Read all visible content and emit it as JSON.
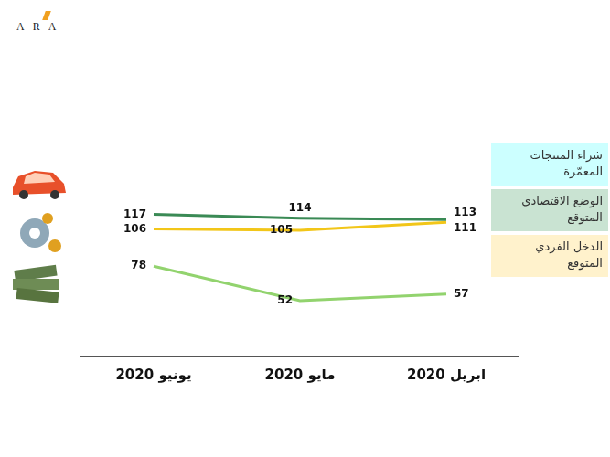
{
  "logo": "ARA",
  "chart_data": {
    "type": "line",
    "categories": [
      "يونيو 2020",
      "مايو 2020",
      "ابريل 2020"
    ],
    "series": [
      {
        "name": "شراء المنتجات المعمّرة",
        "color": "#92d36e",
        "values": [
          78,
          52,
          57
        ]
      },
      {
        "name": "الوضع الاقتصادي المتوقع",
        "color": "#3a8a55",
        "values": [
          117,
          114,
          113
        ]
      },
      {
        "name": "الدخل الفردي المتوقع",
        "color": "#f2c619",
        "values": [
          106,
          105,
          111
        ]
      }
    ],
    "ylim": [
      10,
      160
    ],
    "data_labels": true,
    "tick_labels": "x",
    "grid": false,
    "legend": "right"
  }
}
